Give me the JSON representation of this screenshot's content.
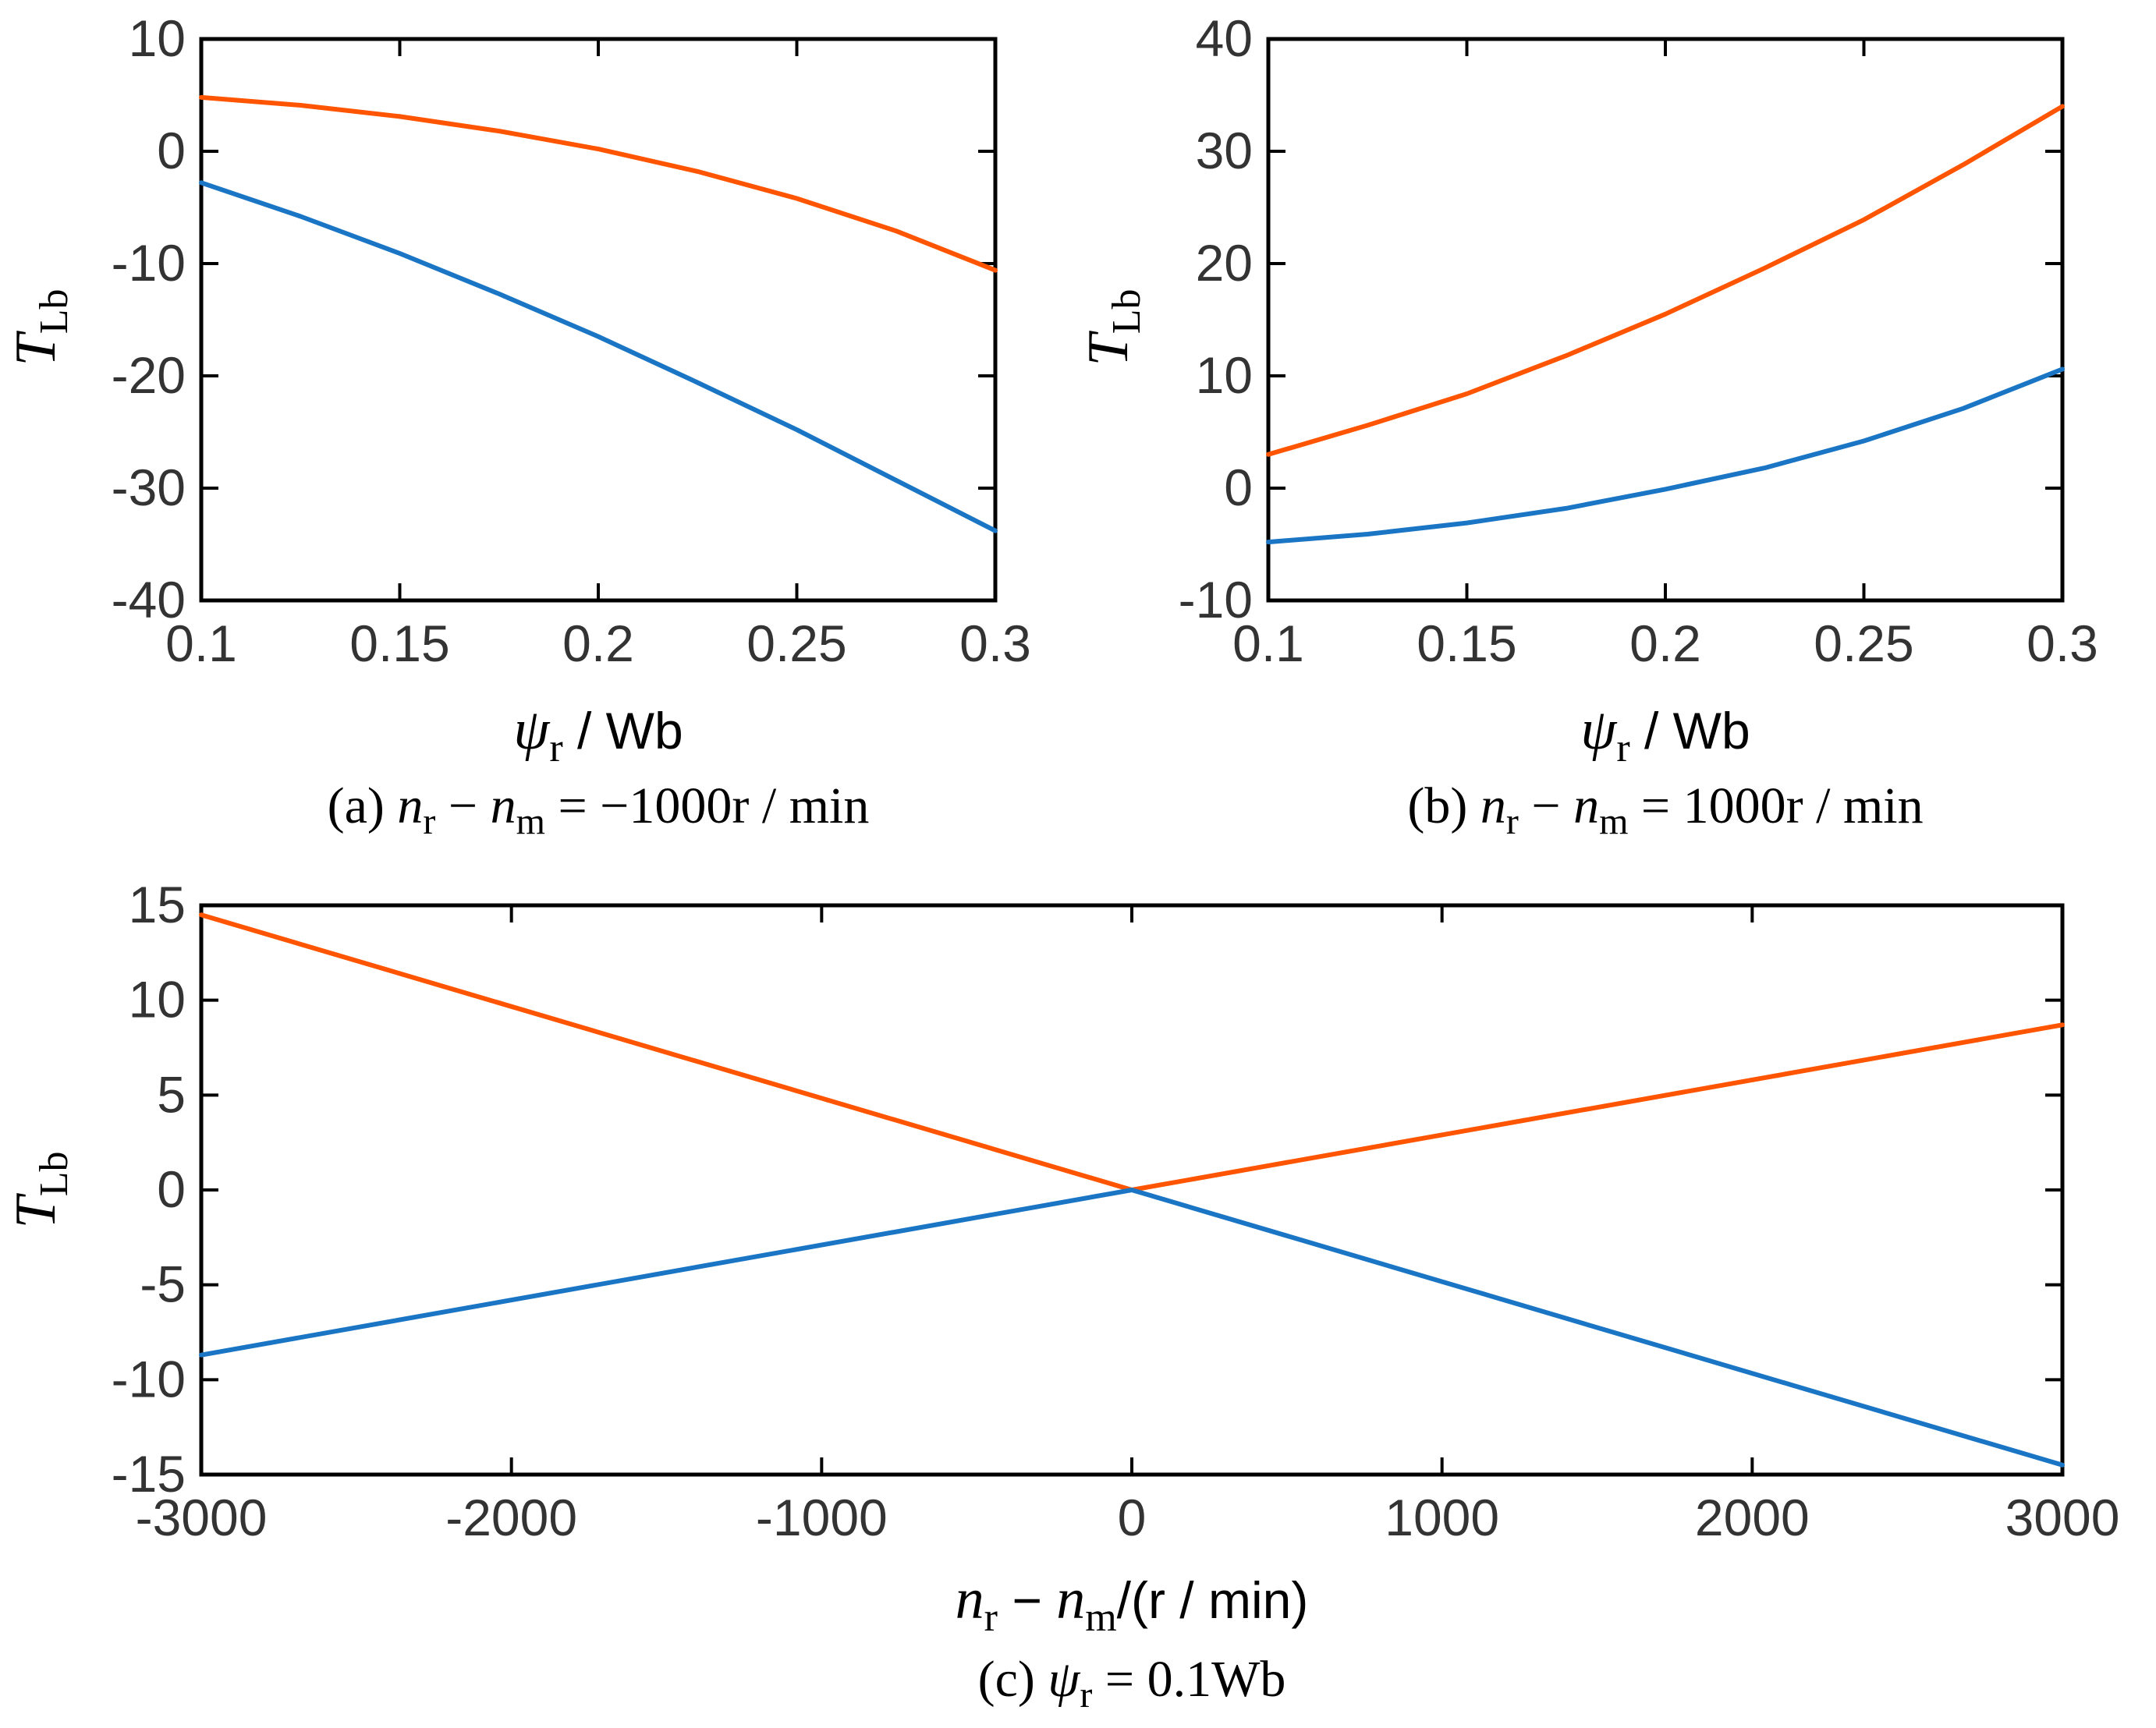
{
  "colors": {
    "orange": "#ff5500",
    "blue": "#1a75c5"
  },
  "chart_data": [
    {
      "id": "a",
      "type": "line",
      "caption": {
        "prefix": "(a)",
        "v1": "n",
        "s1": "r",
        "op": "−",
        "v2": "n",
        "s2": "m",
        "eq": "=",
        "value": "−1000r / min"
      },
      "ylabel": {
        "var": "T",
        "sub": "Lb"
      },
      "xlabel": {
        "var": "ψ",
        "sub": "r",
        "unit": "/ Wb"
      },
      "xlim": [
        0.1,
        0.3
      ],
      "ylim": [
        -40,
        10
      ],
      "xticks": [
        0.1,
        0.15,
        0.2,
        0.25,
        0.3
      ],
      "xtick_labels": [
        "0.1",
        "0.15",
        "0.2",
        "0.25",
        "0.3"
      ],
      "yticks": [
        -40,
        -30,
        -20,
        -10,
        0,
        10
      ],
      "ytick_labels": [
        "-40",
        "-30",
        "-20",
        "-10",
        "0",
        "10"
      ],
      "x": [
        0.1,
        0.125,
        0.15,
        0.175,
        0.2,
        0.225,
        0.25,
        0.275,
        0.3
      ],
      "series": [
        {
          "name": "orange",
          "color_key": "orange",
          "values": [
            4.8,
            4.1,
            3.1,
            1.8,
            0.2,
            -1.8,
            -4.2,
            -7.1,
            -10.6
          ]
        },
        {
          "name": "blue",
          "color_key": "blue",
          "values": [
            -2.8,
            -5.8,
            -9.1,
            -12.7,
            -16.5,
            -20.6,
            -24.8,
            -29.3,
            -33.8
          ]
        }
      ]
    },
    {
      "id": "b",
      "type": "line",
      "caption": {
        "prefix": "(b)",
        "v1": "n",
        "s1": "r",
        "op": "−",
        "v2": "n",
        "s2": "m",
        "eq": "=",
        "value": "1000r / min"
      },
      "ylabel": {
        "var": "T",
        "sub": "Lb"
      },
      "xlabel": {
        "var": "ψ",
        "sub": "r",
        "unit": "/ Wb"
      },
      "xlim": [
        0.1,
        0.3
      ],
      "ylim": [
        -10,
        40
      ],
      "xticks": [
        0.1,
        0.15,
        0.2,
        0.25,
        0.3
      ],
      "xtick_labels": [
        "0.1",
        "0.15",
        "0.2",
        "0.25",
        "0.3"
      ],
      "yticks": [
        -10,
        0,
        10,
        20,
        30,
        40
      ],
      "ytick_labels": [
        "-10",
        "0",
        "10",
        "20",
        "30",
        "40"
      ],
      "x": [
        0.1,
        0.125,
        0.15,
        0.175,
        0.2,
        0.225,
        0.25,
        0.275,
        0.3
      ],
      "series": [
        {
          "name": "orange",
          "color_key": "orange",
          "values": [
            3.0,
            5.6,
            8.4,
            11.8,
            15.5,
            19.6,
            23.9,
            28.8,
            34.0
          ]
        },
        {
          "name": "blue",
          "color_key": "blue",
          "values": [
            -4.8,
            -4.1,
            -3.1,
            -1.8,
            -0.1,
            1.8,
            4.2,
            7.1,
            10.6
          ]
        }
      ]
    },
    {
      "id": "c",
      "type": "line",
      "caption": {
        "prefix": "(c)",
        "v1": "ψ",
        "s1": "r",
        "eq": "=",
        "value": "0.1Wb"
      },
      "ylabel": {
        "var": "T",
        "sub": "Lb"
      },
      "xlabel": {
        "v1": "n",
        "s1": "r",
        "op": "−",
        "v2": "n",
        "s2": "m",
        "unit": "/(r / min)"
      },
      "xlim": [
        -3000,
        3000
      ],
      "ylim": [
        -15,
        15
      ],
      "xticks": [
        -3000,
        -2000,
        -1000,
        0,
        1000,
        2000,
        3000
      ],
      "xtick_labels": [
        "-3000",
        "-2000",
        "-1000",
        "0",
        "1000",
        "2000",
        "3000"
      ],
      "yticks": [
        -15,
        -10,
        -5,
        0,
        5,
        10,
        15
      ],
      "ytick_labels": [
        "-15",
        "-10",
        "-5",
        "0",
        "5",
        "10",
        "15"
      ],
      "x": [
        -3000,
        0,
        3000
      ],
      "series": [
        {
          "name": "orange",
          "color_key": "orange",
          "values": [
            14.5,
            0,
            8.7
          ]
        },
        {
          "name": "blue",
          "color_key": "blue",
          "values": [
            -8.7,
            0,
            -14.5
          ]
        }
      ]
    }
  ]
}
